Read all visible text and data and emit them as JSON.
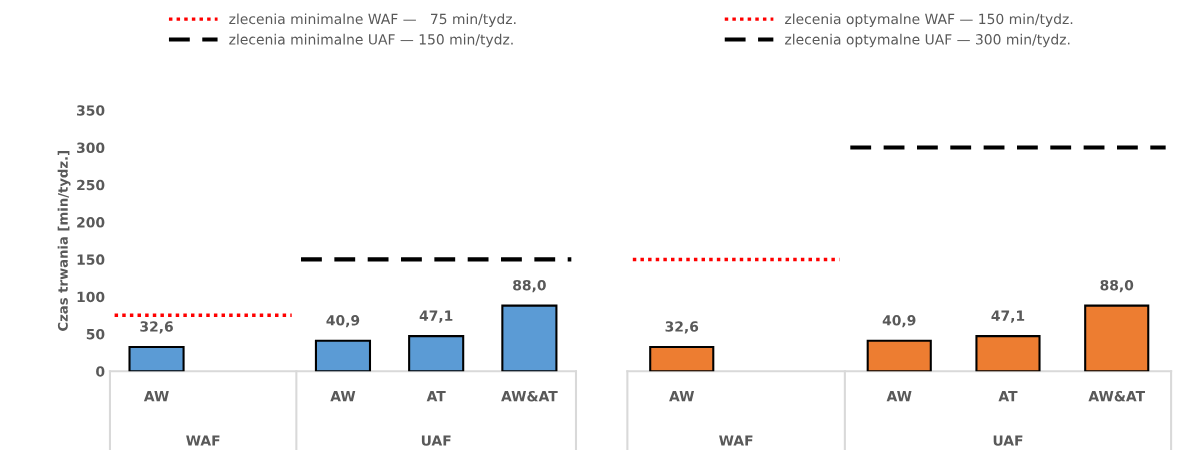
{
  "chart_data": [
    {
      "type": "bar",
      "ylabel": "Czas trwania [min/tydz.]",
      "categories": [
        "AW",
        null,
        "AW",
        "AT",
        "AW&AT"
      ],
      "series": [
        {
          "color": "#5b9bd5",
          "values": [
            32.6,
            null,
            40.9,
            47.1,
            88.0
          ],
          "value_labels": [
            "32,6",
            null,
            "40,9",
            "47,1",
            "88,0"
          ]
        }
      ],
      "ylim": [
        0,
        350
      ],
      "yticks": [
        0,
        50,
        100,
        150,
        200,
        250,
        300,
        350
      ],
      "grid": false,
      "legend": "top",
      "ref_lines": [
        {
          "axis": "y",
          "value": 75,
          "label": "zlecenia minimalne WAF —   75 min/tydz.",
          "color": "#ff0000",
          "line_style": "dotted"
        },
        {
          "axis": "y",
          "value": 150,
          "label": "zlecenia minimalne UAF — 150 min/tydz.",
          "color": "#000000",
          "line_style": "dashed"
        }
      ],
      "annotations": [
        "WAF",
        "UAF"
      ]
    },
    {
      "type": "bar",
      "categories": [
        "AW",
        null,
        "AW",
        "AT",
        "AW&AT"
      ],
      "series": [
        {
          "color": "#ed7d31",
          "values": [
            32.6,
            null,
            40.9,
            47.1,
            88.0
          ],
          "value_labels": [
            "32,6",
            null,
            "40,9",
            "47,1",
            "88,0"
          ]
        }
      ],
      "ylim": [
        0,
        350
      ],
      "yticks": [
        0,
        50,
        100,
        150,
        200,
        250,
        300,
        350
      ],
      "grid": false,
      "legend": "top",
      "tick_labels": "x",
      "ref_lines": [
        {
          "axis": "y",
          "value": 150,
          "label": "zlecenia optymalne WAF — 150 min/tydz.",
          "color": "#ff0000",
          "line_style": "dotted"
        },
        {
          "axis": "y",
          "value": 300,
          "label": "zlecenia optymalne UAF — 300 min/tydz.",
          "color": "#000000",
          "line_style": "dashed"
        }
      ],
      "annotations": [
        "WAF",
        "UAF"
      ]
    }
  ]
}
